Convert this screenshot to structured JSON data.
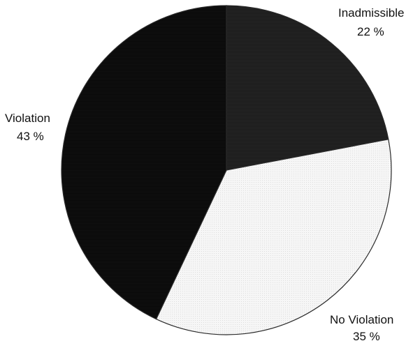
{
  "chart_data": {
    "type": "pie",
    "slices": [
      {
        "label": "Inadmissible",
        "value": 22,
        "value_text": "22 %",
        "color": "#1c1c1c"
      },
      {
        "label": "No Violation",
        "value": 35,
        "value_text": "35 %",
        "color": "#f4f4f4"
      },
      {
        "label": "Violation",
        "value": 43,
        "value_text": "43 %",
        "color": "#0b0b0b"
      }
    ],
    "start_angle_deg": 0,
    "direction": "clockwise",
    "legend": "none"
  }
}
